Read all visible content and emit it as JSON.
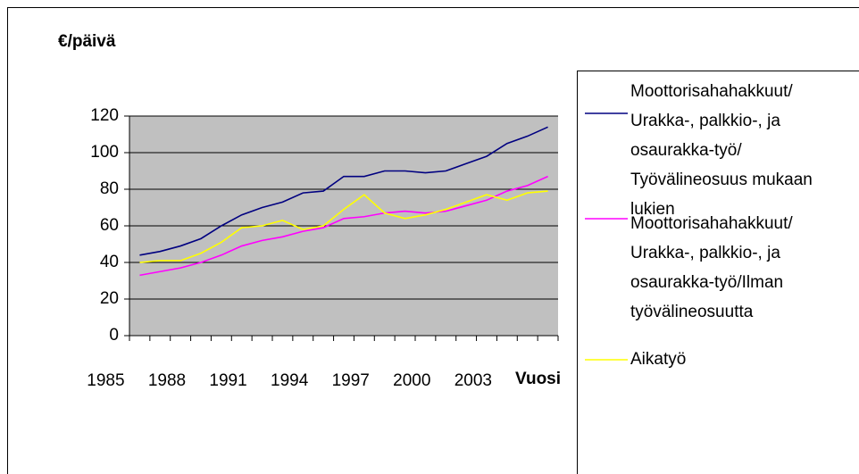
{
  "chart_data": {
    "type": "line",
    "title": "€/päivä",
    "x_label": "Vuosi",
    "categories": [
      "1985",
      null,
      null,
      "1988",
      null,
      null,
      "1991",
      null,
      null,
      "1994",
      null,
      null,
      "1997",
      null,
      null,
      "2000",
      null,
      null,
      "2003",
      null,
      null
    ],
    "series": [
      {
        "name": "Moottorisahahakkuut/Urakka-, palkkio-, ja osaurakka-työ/Työvälineosuus mukaan lukien",
        "color": "#000080",
        "values": [
          44,
          46,
          49,
          53,
          60,
          66,
          70,
          73,
          78,
          79,
          87,
          87,
          90,
          90,
          89,
          90,
          94,
          98,
          105,
          109,
          114
        ]
      },
      {
        "name": "Moottorisahahakkuut/Urakka-, palkkio-, ja osaurakka-työ/Ilman työvälineosuutta",
        "color": "#ff00ff",
        "values": [
          33,
          35,
          37,
          40,
          44,
          49,
          52,
          54,
          57,
          59,
          64,
          65,
          67,
          68,
          67,
          68,
          71,
          74,
          79,
          82,
          87
        ]
      },
      {
        "name": "Aikatyö",
        "color": "#ffff00",
        "values": [
          40,
          41,
          41,
          45,
          51,
          59,
          60,
          63,
          58,
          60,
          69,
          77,
          67,
          64,
          66,
          69,
          73,
          77,
          74,
          78,
          79
        ]
      }
    ],
    "ylim": [
      0,
      120
    ],
    "yticks": [
      0,
      20,
      40,
      60,
      80,
      100,
      120
    ],
    "grid": true,
    "plot_background": "#c0c0c0"
  }
}
